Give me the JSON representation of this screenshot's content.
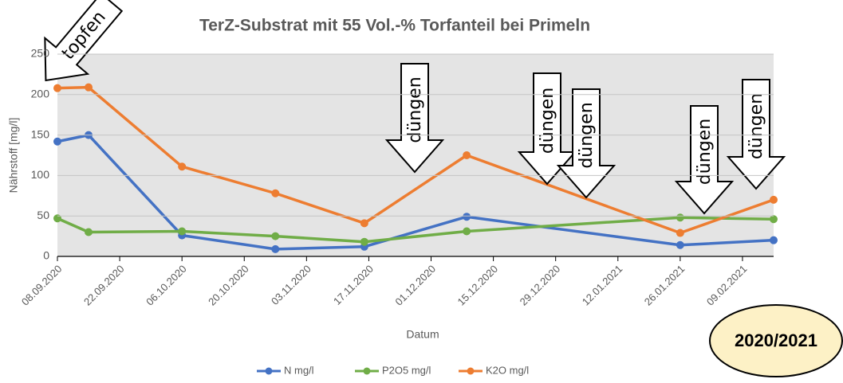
{
  "chart_data": {
    "type": "line",
    "title": "TerZ-Substrat mit 55 Vol.-% Torfanteil bei Primeln",
    "x_label": "Datum",
    "y_label": "Nährstoff [mg/l]",
    "x": [
      "08.09.2020",
      "15.09.2020",
      "06.10.2020",
      "27.10.2020",
      "16.11.2020",
      "09.12.2020",
      "26.01.2021",
      "16.02.2021"
    ],
    "series": [
      {
        "name": "N mg/l",
        "color": "#4472c4",
        "values": [
          142,
          150,
          26,
          9,
          12,
          49,
          14,
          20
        ]
      },
      {
        "name": "P2O5 mg/l",
        "color": "#70ad47",
        "values": [
          47,
          30,
          31,
          25,
          18,
          31,
          48,
          46
        ]
      },
      {
        "name": "K2O mg/l",
        "color": "#ed7d31",
        "values": [
          208,
          209,
          111,
          78,
          41,
          125,
          29,
          70
        ]
      }
    ],
    "xlim": [
      "08.09.2020",
      "16.02.2021"
    ],
    "xticks": [
      "08.09.2020",
      "22.09.2020",
      "06.10.2020",
      "20.10.2020",
      "03.11.2020",
      "17.11.2020",
      "01.12.2020",
      "15.12.2020",
      "29.12.2020",
      "12.01.2021",
      "26.01.2021",
      "09.02.2021"
    ],
    "ylim": [
      0,
      250
    ],
    "yticks": [
      0,
      50,
      100,
      150,
      200,
      250
    ],
    "grid": true,
    "legend": "bottom",
    "annotations": [
      "topfen",
      "düngen",
      "düngen",
      "düngen",
      "düngen",
      "düngen",
      "2020/2021"
    ]
  }
}
